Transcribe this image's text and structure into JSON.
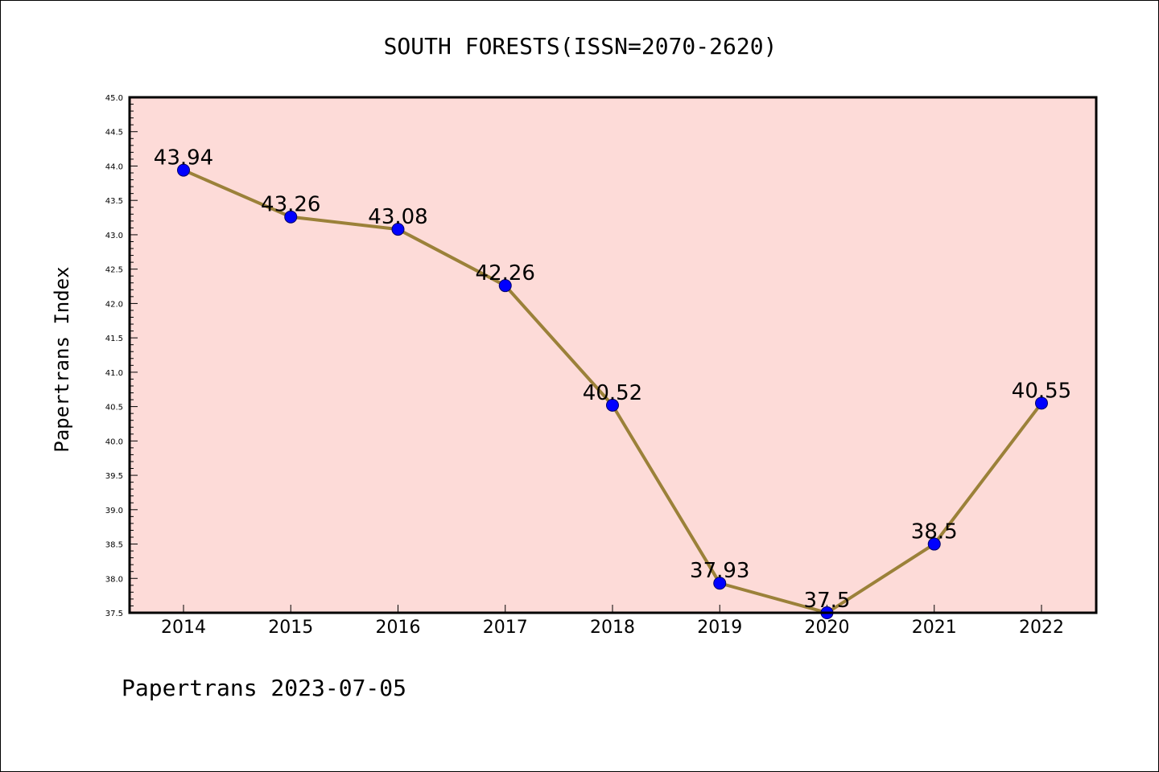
{
  "chart_data": {
    "type": "line",
    "title": "SOUTH FORESTS(ISSN=2070-2620)",
    "xlabel": "",
    "ylabel": "Papertrans Index",
    "x": [
      "2014",
      "2015",
      "2016",
      "2017",
      "2018",
      "2019",
      "2020",
      "2021",
      "2022"
    ],
    "values": [
      43.94,
      43.26,
      43.08,
      42.26,
      40.52,
      37.93,
      37.5,
      38.5,
      40.55
    ],
    "data_labels": [
      "43.94",
      "43.26",
      "43.08",
      "42.26",
      "40.52",
      "37.93",
      "37.5",
      "38.5",
      "40.55"
    ],
    "ylim": [
      37.5,
      45.0
    ],
    "yticks": [
      "37.5",
      "38.0",
      "38.5",
      "39.0",
      "39.5",
      "40.0",
      "40.5",
      "41.0",
      "41.5",
      "42.0",
      "42.5",
      "43.0",
      "43.5",
      "44.0",
      "44.5",
      "45.0"
    ],
    "grid": false,
    "legend": "none",
    "colors": {
      "plot_background": "#fddbd8",
      "line": "#9b8139",
      "marker": "#0000ff",
      "marker_edge": "#000066"
    }
  },
  "footer": {
    "text": "Papertrans 2023-07-05"
  }
}
